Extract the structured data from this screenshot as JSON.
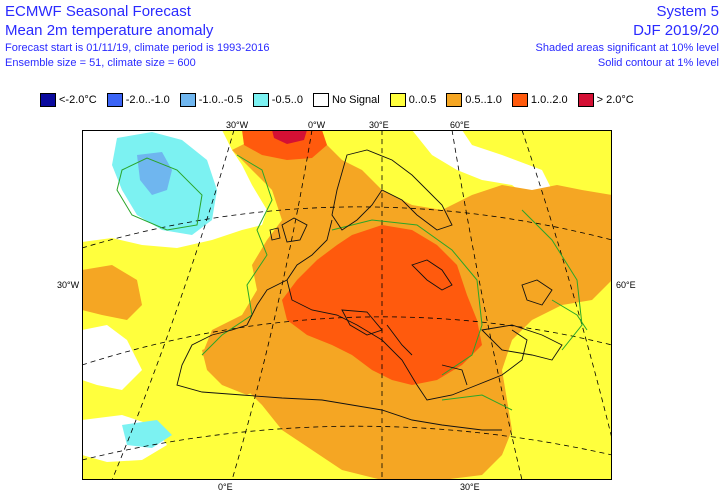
{
  "header": {
    "title": "ECMWF Seasonal Forecast",
    "subtitle": "Mean 2m temperature anomaly",
    "line3": "Forecast start is 01/11/19, climate period is 1993-2016",
    "line4": "Ensemble size = 51, climate size = 600",
    "system": "System 5",
    "season": "DJF 2019/20",
    "sig1": "Shaded areas significant at 10% level",
    "sig2": "Solid contour at 1% level"
  },
  "legend": [
    {
      "label": "<-2.0°C",
      "color": "#0a0a9e"
    },
    {
      "label": "-2.0..-1.0",
      "color": "#3b64f5"
    },
    {
      "label": "-1.0..-0.5",
      "color": "#6fb6ef"
    },
    {
      "label": "-0.5..0",
      "color": "#7cf2f2"
    },
    {
      "label": "No Signal",
      "color": "#ffffff"
    },
    {
      "label": "0..0.5",
      "color": "#ffff3d"
    },
    {
      "label": "0.5..1.0",
      "color": "#f5a623"
    },
    {
      "label": "1.0..2.0",
      "color": "#ff5a0d"
    },
    {
      "label": "> 2.0°C",
      "color": "#d41034"
    }
  ],
  "grid_labels": {
    "top1": "30°W",
    "top2": "0°W",
    "top3": "30°E",
    "top4": "60°E",
    "left": "30°W",
    "right": "60°E",
    "bottom1": "0°E",
    "bottom2": "30°E"
  },
  "colors": {
    "title_text": "#2a2aff",
    "contour": "#2aa52a"
  }
}
